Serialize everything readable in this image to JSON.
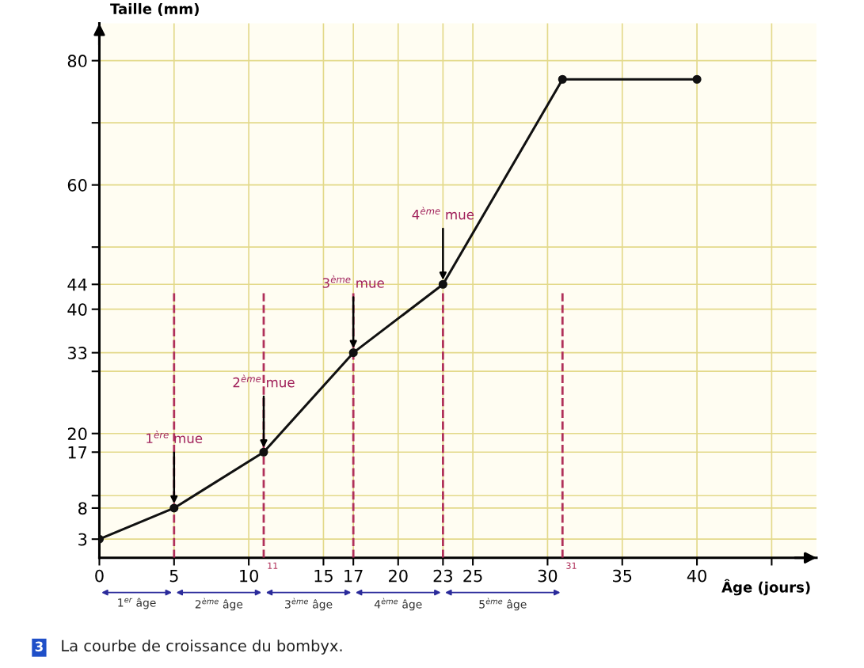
{
  "chart_data": {
    "type": "line",
    "xlabel": "Âge (jours)",
    "ylabel": "Taille (mm)",
    "x": [
      0,
      5,
      11,
      17,
      23,
      31,
      40
    ],
    "series": [
      {
        "color": "#111111",
        "values": [
          3,
          8,
          17,
          33,
          44,
          77,
          77
        ]
      }
    ],
    "marker": "circle",
    "line_style": "solid",
    "grid": true,
    "xlim": [
      0,
      48
    ],
    "ylim": [
      0,
      86
    ],
    "xticks": [
      0,
      5,
      10,
      15,
      17,
      20,
      23,
      25,
      30,
      35,
      40,
      {
        "value": 45,
        "label": null
      }
    ],
    "yticks": [
      3,
      8,
      {
        "value": 10,
        "label": null
      },
      17,
      20,
      {
        "value": 30,
        "label": null
      },
      33,
      40,
      44,
      {
        "value": 50,
        "label": null
      },
      60,
      {
        "value": 70,
        "label": null
      },
      80
    ],
    "ref_lines": [
      {
        "axis": "x",
        "value": 5,
        "label": null,
        "color": "#b0305a",
        "line_style": "dashed"
      },
      {
        "axis": "x",
        "value": 11,
        "label": "11",
        "color": "#b0305a",
        "line_style": "dashed"
      },
      {
        "axis": "x",
        "value": 17,
        "label": null,
        "color": "#b0305a",
        "line_style": "dashed"
      },
      {
        "axis": "x",
        "value": 23,
        "label": null,
        "color": "#b0305a",
        "line_style": "dashed"
      },
      {
        "axis": "x",
        "value": 31,
        "label": "31",
        "color": "#b0305a",
        "line_style": "dashed"
      }
    ],
    "annotations": [
      {
        "text": "1$^{ère}$ mue",
        "x": 5,
        "y": 8
      },
      {
        "text": "2$^{ème}$ mue",
        "x": 11,
        "y": 17
      },
      {
        "text": "3$^{ème}$ mue",
        "x": 17,
        "y": 33
      },
      {
        "text": "4$^{ème}$ mue",
        "x": 23,
        "y": 44
      },
      "1$^{er}$ âge",
      "2$^{ème}$ âge",
      "3$^{ème}$ âge",
      "4$^{ème}$ âge",
      "5$^{ème}$ âge",
      "3",
      "La courbe de croissance du bombyx."
    ]
  }
}
